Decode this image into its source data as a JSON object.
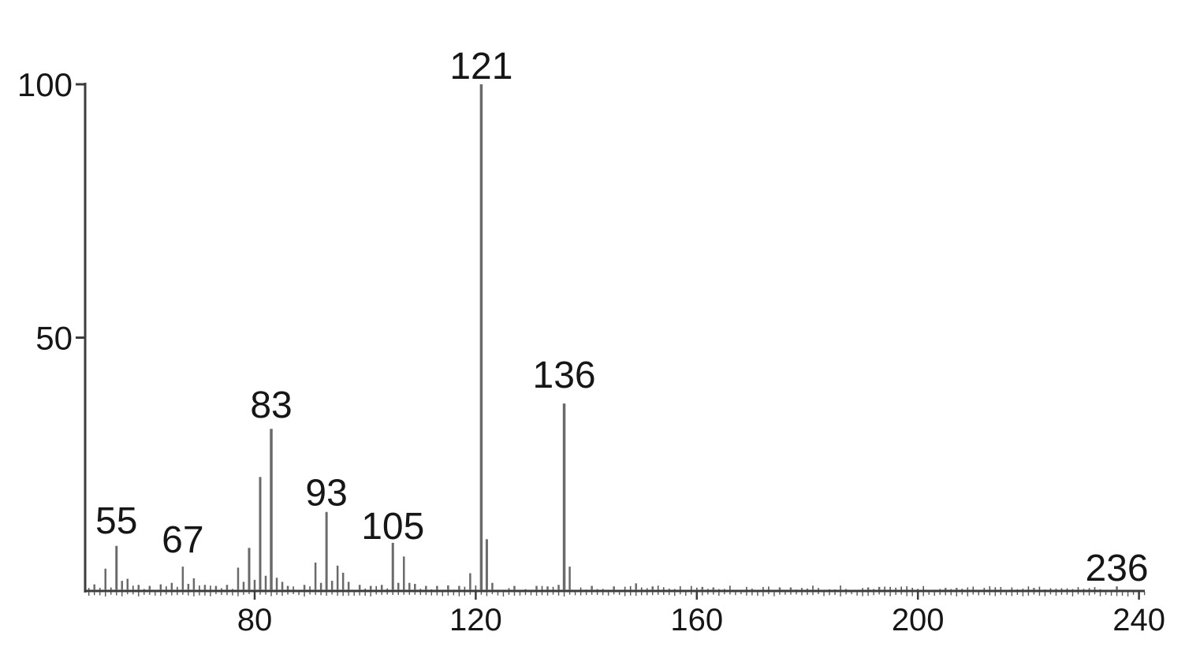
{
  "chart_data": {
    "type": "bar",
    "subtype": "mass_spectrum",
    "title": "",
    "xlabel": "",
    "ylabel": "",
    "xlim": [
      49.3,
      241.5
    ],
    "ylim": [
      0,
      100
    ],
    "x_ticks": [
      80,
      120,
      160,
      200,
      240
    ],
    "y_ticks": [
      50,
      100
    ],
    "grid": false,
    "legend": null,
    "colors": {
      "background": "#ffffff",
      "axis": "#3c3c3c",
      "peak": "#6a6a6a",
      "noise": "#555555",
      "text": "#161616"
    },
    "peaks": [
      {
        "mz": 51,
        "i": 1.3
      },
      {
        "mz": 53,
        "i": 4.4
      },
      {
        "mz": 55,
        "i": 8.9
      },
      {
        "mz": 56,
        "i": 2.0
      },
      {
        "mz": 57,
        "i": 2.4
      },
      {
        "mz": 59,
        "i": 1.2
      },
      {
        "mz": 61,
        "i": 1.0
      },
      {
        "mz": 63,
        "i": 1.3
      },
      {
        "mz": 65,
        "i": 1.6
      },
      {
        "mz": 67,
        "i": 4.8
      },
      {
        "mz": 68,
        "i": 1.4
      },
      {
        "mz": 69,
        "i": 2.5
      },
      {
        "mz": 71,
        "i": 1.2
      },
      {
        "mz": 73,
        "i": 1.0
      },
      {
        "mz": 75,
        "i": 1.2
      },
      {
        "mz": 77,
        "i": 4.6
      },
      {
        "mz": 78,
        "i": 1.8
      },
      {
        "mz": 79,
        "i": 8.5
      },
      {
        "mz": 80,
        "i": 2.2
      },
      {
        "mz": 81,
        "i": 22.5
      },
      {
        "mz": 82,
        "i": 3.0
      },
      {
        "mz": 83,
        "i": 32.0
      },
      {
        "mz": 84,
        "i": 2.6
      },
      {
        "mz": 85,
        "i": 1.8
      },
      {
        "mz": 86,
        "i": 1.0
      },
      {
        "mz": 89,
        "i": 1.2
      },
      {
        "mz": 91,
        "i": 5.6
      },
      {
        "mz": 92,
        "i": 1.6
      },
      {
        "mz": 93,
        "i": 15.6
      },
      {
        "mz": 94,
        "i": 2.0
      },
      {
        "mz": 95,
        "i": 5.0
      },
      {
        "mz": 96,
        "i": 3.6
      },
      {
        "mz": 97,
        "i": 1.8
      },
      {
        "mz": 99,
        "i": 1.2
      },
      {
        "mz": 101,
        "i": 1.0
      },
      {
        "mz": 103,
        "i": 1.2
      },
      {
        "mz": 105,
        "i": 9.5
      },
      {
        "mz": 106,
        "i": 1.6
      },
      {
        "mz": 107,
        "i": 6.8
      },
      {
        "mz": 108,
        "i": 1.6
      },
      {
        "mz": 109,
        "i": 1.4
      },
      {
        "mz": 111,
        "i": 1.0
      },
      {
        "mz": 113,
        "i": 1.0
      },
      {
        "mz": 115,
        "i": 1.1
      },
      {
        "mz": 117,
        "i": 1.0
      },
      {
        "mz": 119,
        "i": 3.5
      },
      {
        "mz": 121,
        "i": 100.0
      },
      {
        "mz": 122,
        "i": 10.2
      },
      {
        "mz": 123,
        "i": 1.6
      },
      {
        "mz": 127,
        "i": 1.0
      },
      {
        "mz": 131,
        "i": 1.0
      },
      {
        "mz": 133,
        "i": 0.9
      },
      {
        "mz": 135,
        "i": 1.2
      },
      {
        "mz": 136,
        "i": 37.0
      },
      {
        "mz": 137,
        "i": 4.8
      },
      {
        "mz": 141,
        "i": 1.0
      },
      {
        "mz": 145,
        "i": 0.9
      },
      {
        "mz": 149,
        "i": 1.5
      },
      {
        "mz": 152,
        "i": 0.9
      },
      {
        "mz": 161,
        "i": 0.8
      },
      {
        "mz": 163,
        "i": 0.7
      },
      {
        "mz": 175,
        "i": 0.7
      },
      {
        "mz": 177,
        "i": 0.7
      },
      {
        "mz": 191,
        "i": 0.7
      },
      {
        "mz": 193,
        "i": 0.8
      },
      {
        "mz": 205,
        "i": 0.6
      },
      {
        "mz": 207,
        "i": 0.6
      },
      {
        "mz": 221,
        "i": 0.6
      },
      {
        "mz": 236,
        "i": 0.9
      }
    ],
    "peak_labels": [
      {
        "text": "55",
        "mz": 55,
        "dy": 16
      },
      {
        "text": "67",
        "mz": 67,
        "dy": 18
      },
      {
        "text": "83",
        "mz": 83,
        "dy": 14
      },
      {
        "text": "93",
        "mz": 93,
        "dy": 8
      },
      {
        "text": "105",
        "mz": 105,
        "dy": 5
      },
      {
        "text": "121",
        "mz": 121,
        "dy": 7
      },
      {
        "text": "136",
        "mz": 136,
        "dy": 20
      },
      {
        "text": "236",
        "mz": 236,
        "dy": 7
      }
    ],
    "baseline_noise": {
      "seed": 13,
      "mz_range": [
        50,
        233
      ],
      "max_intensity": 1.1
    }
  }
}
